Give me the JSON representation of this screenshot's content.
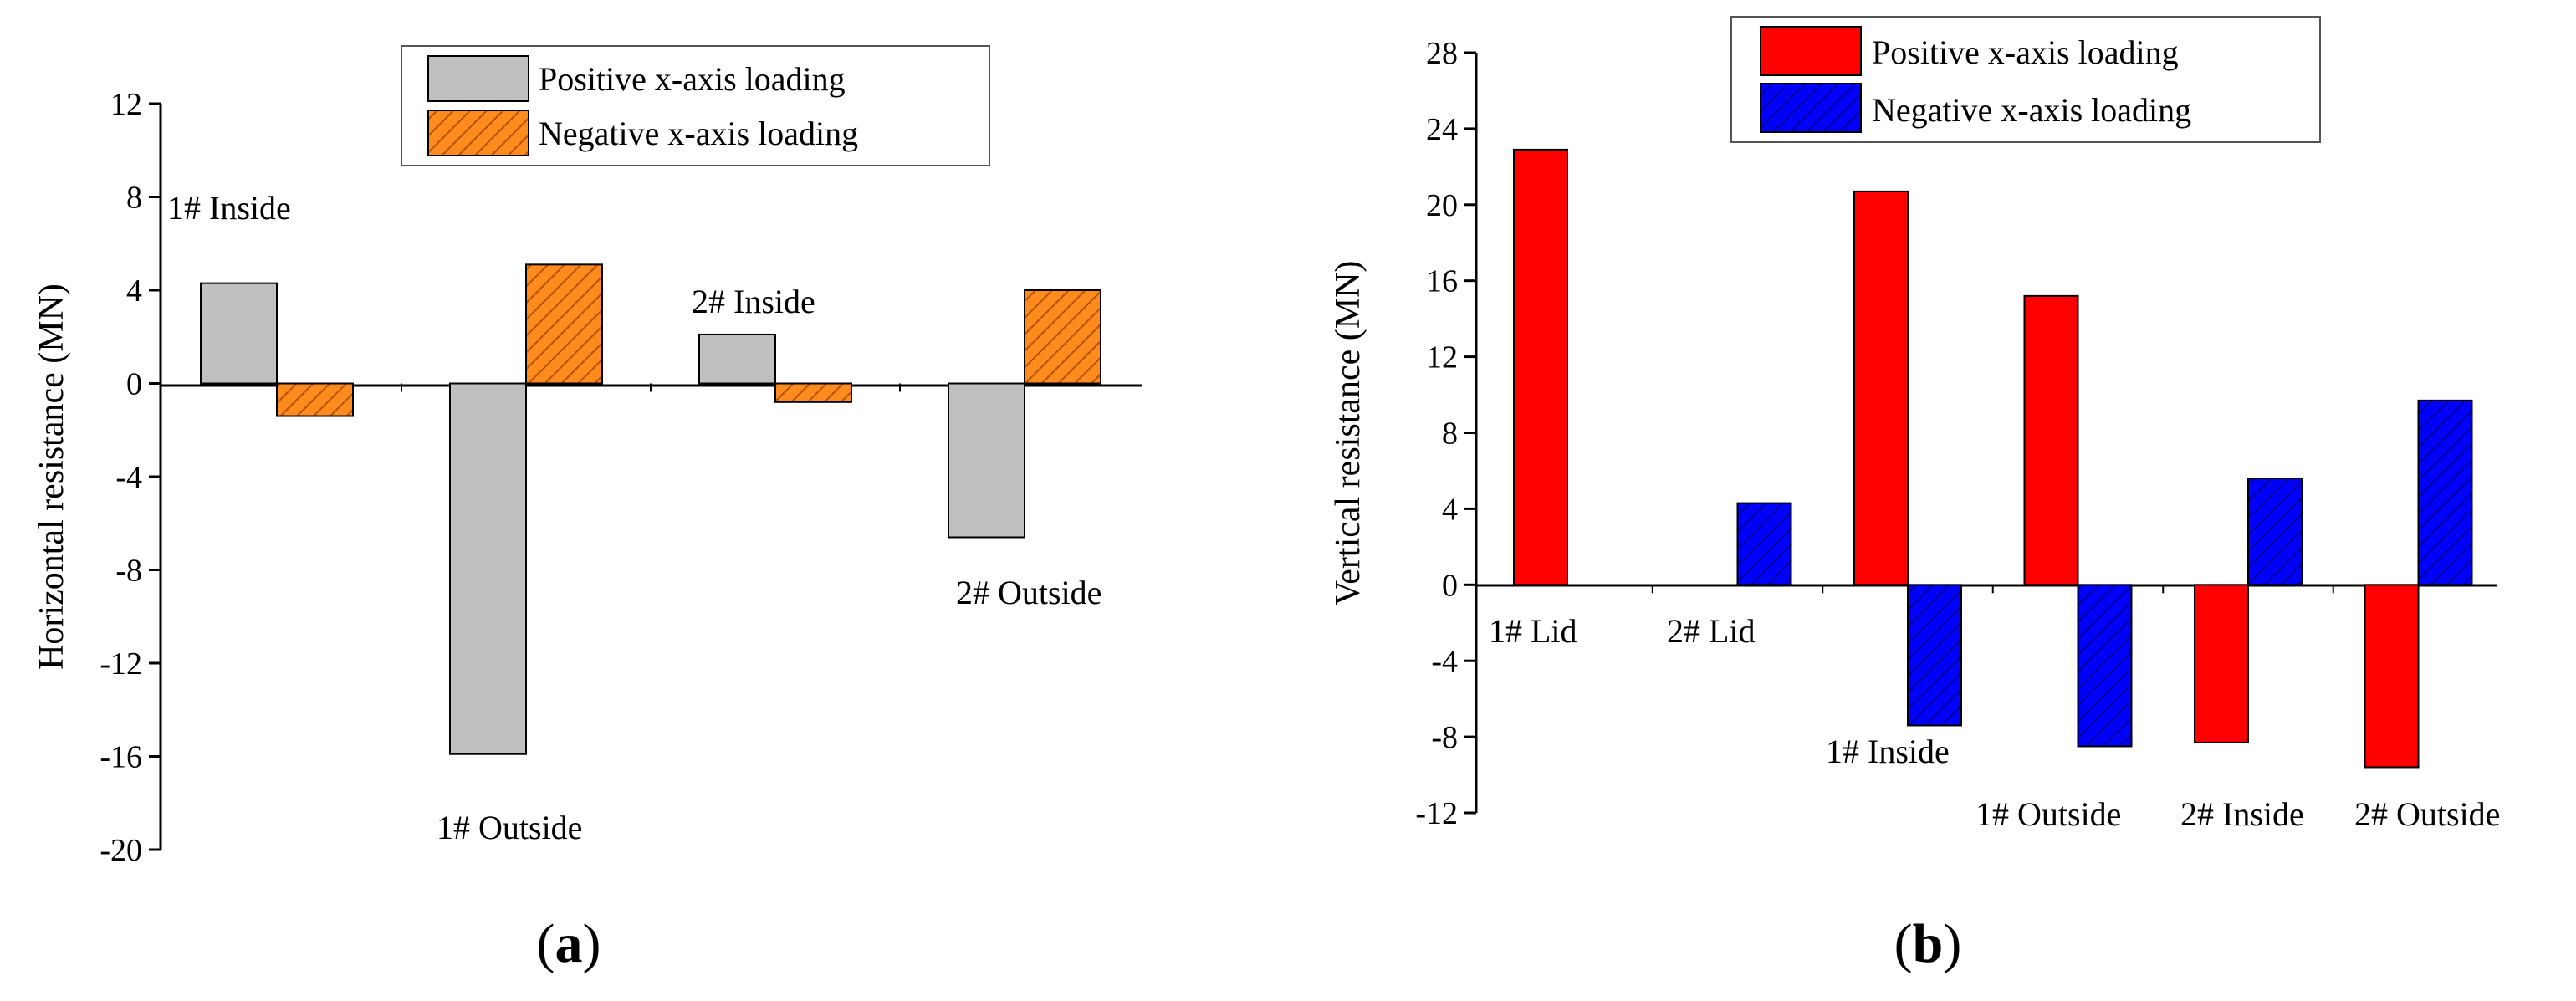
{
  "colors": {
    "a_positive": "#c0c0c0",
    "a_negative": "#ff8a1e",
    "a_negative_hatch": "#b35400",
    "b_positive": "#ff0000",
    "b_negative": "#0000ff",
    "b_negative_hatch": "#00009a"
  },
  "chart_data": [
    {
      "type": "bar",
      "panel_label_open": "(",
      "panel_letter": "a",
      "panel_label_close": ")",
      "xlabel": "",
      "ylabel": "Horizontal resistance (MN)",
      "ylim": [
        -20,
        12
      ],
      "yticks": [
        "12",
        "8",
        "4",
        "0",
        "-4",
        "-8",
        "-12",
        "-16",
        "-20"
      ],
      "ytick_values": [
        12,
        8,
        4,
        0,
        -4,
        -8,
        -12,
        -16,
        -20
      ],
      "categories": [
        "1# Inside",
        "1# Outside",
        "2# Inside",
        "2# Outside"
      ],
      "series": [
        {
          "name": "Positive x-axis loading",
          "values": [
            4.3,
            -15.9,
            2.1,
            -6.6
          ]
        },
        {
          "name": "Negative x-axis loading",
          "values": [
            -1.4,
            5.1,
            -0.8,
            4.0
          ]
        }
      ],
      "legend_position": "top-right"
    },
    {
      "type": "bar",
      "panel_label_open": "(",
      "panel_letter": "b",
      "panel_label_close": ")",
      "xlabel": "",
      "ylabel": "Vertical resistance (MN)",
      "ylim": [
        -12,
        28
      ],
      "yticks": [
        "28",
        "24",
        "20",
        "16",
        "12",
        "8",
        "4",
        "0",
        "-4",
        "-8",
        "-12"
      ],
      "ytick_values": [
        28,
        24,
        20,
        16,
        12,
        8,
        4,
        0,
        -4,
        -8,
        -12
      ],
      "categories": [
        "1# Lid",
        "2# Lid",
        "1# Inside",
        "1# Outside",
        "2# Inside",
        "2# Outside"
      ],
      "series": [
        {
          "name": "Positive x-axis loading",
          "values": [
            22.9,
            null,
            20.7,
            15.2,
            -8.3,
            -9.6
          ]
        },
        {
          "name": "Negative x-axis loading",
          "values": [
            null,
            4.3,
            -7.4,
            -8.5,
            5.6,
            9.7
          ]
        }
      ],
      "legend_position": "top"
    }
  ]
}
